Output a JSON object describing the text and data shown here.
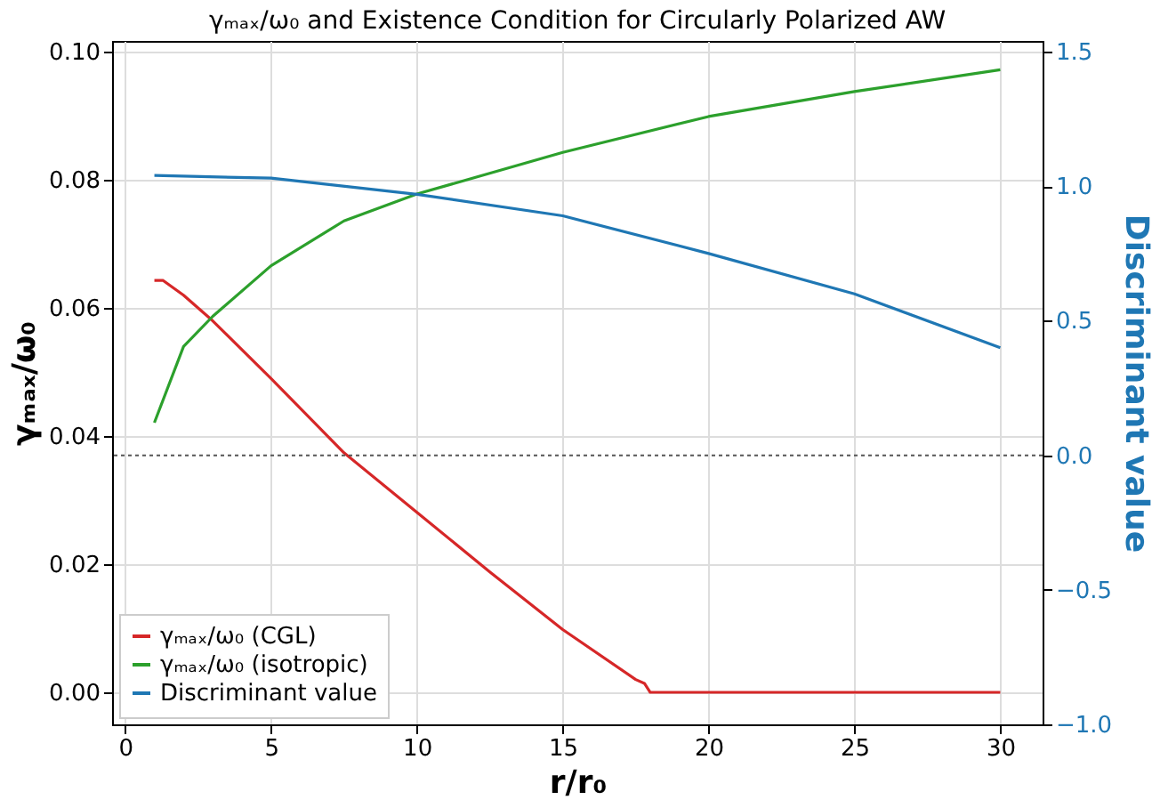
{
  "chart_data": {
    "type": "line",
    "title": "γₘₐₓ/ω₀ and Existence Condition for Circularly Polarized AW",
    "xlabel": "r/r₀",
    "ylabel": "γₘₐₓ/ω₀",
    "y2label": "Discriminant value",
    "xlim": [
      -0.45,
      31.45
    ],
    "xticks": [
      0,
      5,
      10,
      15,
      20,
      25,
      30
    ],
    "ylim": [
      -0.005,
      0.1017
    ],
    "yticks": [
      {
        "value": 0,
        "label": "0.00"
      },
      {
        "value": 0.02,
        "label": "0.02"
      },
      {
        "value": 0.04,
        "label": "0.04"
      },
      {
        "value": 0.06,
        "label": "0.06"
      },
      {
        "value": 0.08,
        "label": "0.08"
      },
      {
        "value": 0.1,
        "label": "0.10"
      }
    ],
    "y2lim": [
      -1.0,
      1.54
    ],
    "y2ticks": [
      {
        "value": -1.0,
        "label": "−1.0"
      },
      {
        "value": -0.5,
        "label": "−0.5"
      },
      {
        "value": 0,
        "label": "0.0"
      },
      {
        "value": 0.5,
        "label": "0.5"
      },
      {
        "value": 1.0,
        "label": "1.0"
      },
      {
        "value": 1.5,
        "label": "1.5"
      }
    ],
    "grid": true,
    "legend": "bottom left",
    "line_style": "solid",
    "ref_lines": [
      {
        "axis": "y2",
        "value": 0,
        "color": "#555555",
        "line_style": "dotted"
      }
    ],
    "series": [
      {
        "name": "γₘₐₓ/ω₀ (CGL)",
        "color": "#d62728",
        "x": [
          1,
          1.3,
          2,
          3,
          5,
          7.5,
          10,
          12.5,
          15,
          17.5,
          17.8,
          18,
          20,
          25,
          30
        ],
        "values": [
          0.0643,
          0.0643,
          0.062,
          0.058,
          0.049,
          0.0374,
          0.0281,
          0.0188,
          0.0098,
          0.002,
          0.0014,
          0,
          0,
          0,
          0
        ]
      },
      {
        "name": "γₘₐₓ/ω₀ (isotropic)",
        "color": "#2ca02c",
        "x": [
          1,
          2,
          3,
          5,
          7.5,
          10,
          15,
          20,
          25,
          30
        ],
        "values": [
          0.0421,
          0.054,
          0.0587,
          0.0666,
          0.0736,
          0.0778,
          0.0843,
          0.0899,
          0.0938,
          0.0972
        ]
      },
      {
        "name": "Discriminant value",
        "color": "#1f77b4",
        "axis": "y2",
        "x": [
          1,
          5,
          10,
          15,
          20,
          25,
          30
        ],
        "values": [
          1.04,
          1.03,
          0.97,
          0.89,
          0.75,
          0.6,
          0.4
        ]
      }
    ]
  }
}
